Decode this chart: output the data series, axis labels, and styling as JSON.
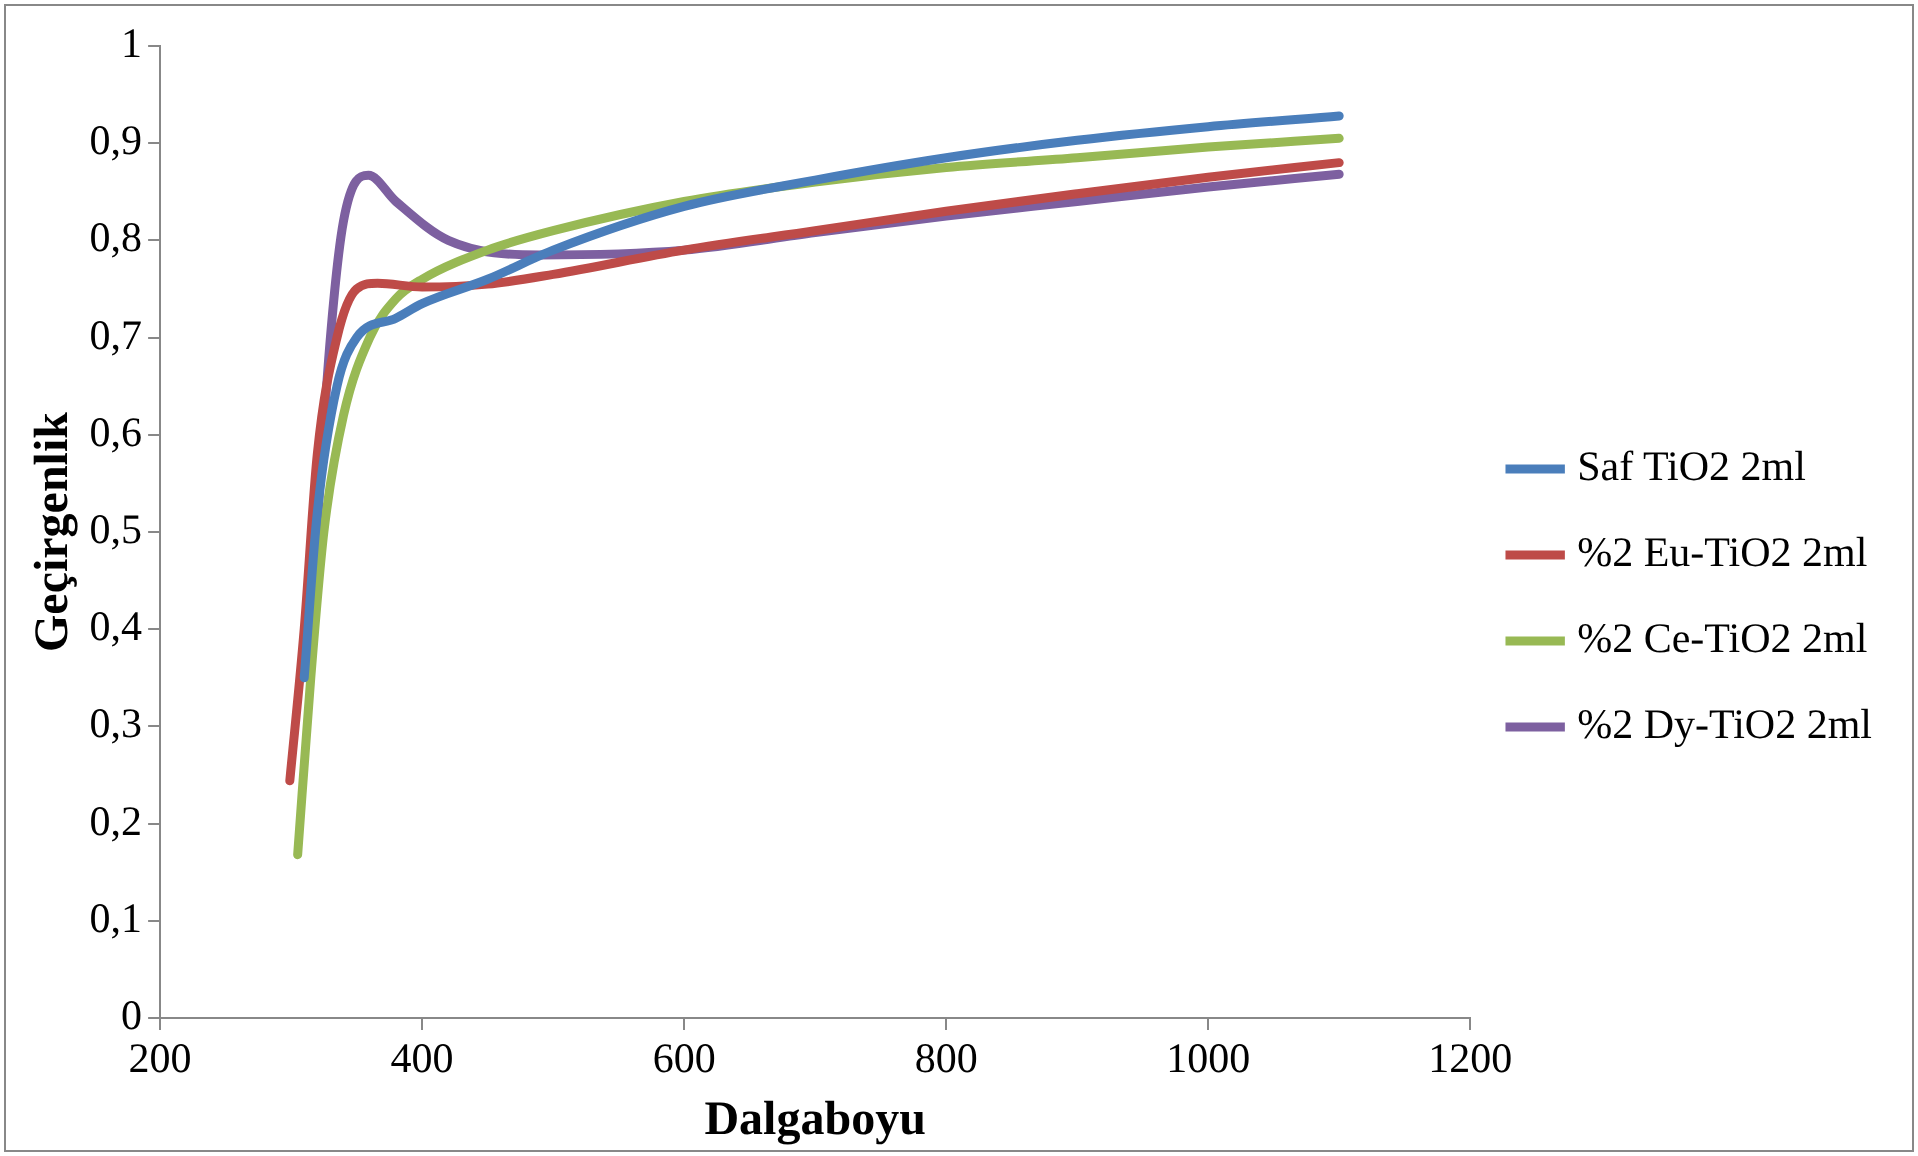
{
  "chart_data": {
    "type": "line",
    "xlabel": "Dalgaboyu",
    "ylabel": "Geçirgenlik",
    "xlim": [
      200,
      1200
    ],
    "xticks": [
      200,
      400,
      600,
      800,
      1000,
      1200
    ],
    "ylim": [
      0,
      1
    ],
    "yticks": [
      0,
      {
        "value": 0.1,
        "label": "0,1"
      },
      {
        "value": 0.2,
        "label": "0,2"
      },
      {
        "value": 0.3,
        "label": "0,3"
      },
      {
        "value": 0.4,
        "label": "0,4"
      },
      {
        "value": 0.5,
        "label": "0,5"
      },
      {
        "value": 0.6,
        "label": "0,6"
      },
      {
        "value": 0.7,
        "label": "0,7"
      },
      {
        "value": 0.8,
        "label": "0,8"
      },
      {
        "value": 0.9,
        "label": "0,9"
      },
      1
    ],
    "grid": false,
    "legend": "right",
    "marker": "none",
    "line_style": "solid",
    "series": [
      {
        "name": "Saf TiO2 2ml",
        "color": "#4a7ebb",
        "x": [
          310,
          320,
          335,
          350,
          380,
          400,
          450,
          500,
          600,
          700,
          800,
          900,
          1000,
          1100
        ],
        "values": [
          0.35,
          0.52,
          0.65,
          0.7,
          0.72,
          0.735,
          0.76,
          0.79,
          0.835,
          0.862,
          0.885,
          0.903,
          0.917,
          0.928
        ]
      },
      {
        "name": "%2 Eu-TiO2 2ml",
        "color": "#be4b48",
        "x": [
          299,
          310,
          320,
          335,
          350,
          366,
          400,
          450,
          500,
          600,
          700,
          800,
          900,
          1000,
          1100
        ],
        "values": [
          0.244,
          0.4,
          0.58,
          0.7,
          0.75,
          0.756,
          0.752,
          0.755,
          0.765,
          0.79,
          0.81,
          0.83,
          0.848,
          0.865,
          0.88
        ]
      },
      {
        "name": "%2 Ce-TiO2 2ml",
        "color": "#98b954",
        "x": [
          305,
          315,
          325,
          340,
          360,
          380,
          400,
          450,
          500,
          600,
          700,
          800,
          900,
          1000,
          1100
        ],
        "values": [
          0.168,
          0.35,
          0.5,
          0.62,
          0.7,
          0.74,
          0.76,
          0.79,
          0.81,
          0.84,
          0.86,
          0.875,
          0.885,
          0.896,
          0.905
        ]
      },
      {
        "name": "%2 Dy-TiO2 2ml",
        "color": "#7d60a0",
        "x": [
          314,
          330,
          340,
          359,
          380,
          420,
          490,
          600,
          700,
          800,
          900,
          1000,
          1100
        ],
        "values": [
          0.385,
          0.7,
          0.82,
          0.867,
          0.84,
          0.8,
          0.785,
          0.79,
          0.808,
          0.825,
          0.84,
          0.855,
          0.868
        ]
      }
    ]
  }
}
